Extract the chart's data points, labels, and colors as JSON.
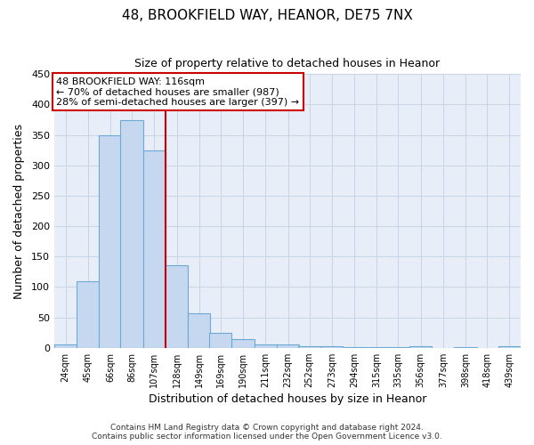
{
  "title": "48, BROOKFIELD WAY, HEANOR, DE75 7NX",
  "subtitle": "Size of property relative to detached houses in Heanor",
  "xlabel": "Distribution of detached houses by size in Heanor",
  "ylabel": "Number of detached properties",
  "bin_labels": [
    "24sqm",
    "45sqm",
    "66sqm",
    "86sqm",
    "107sqm",
    "128sqm",
    "149sqm",
    "169sqm",
    "190sqm",
    "211sqm",
    "232sqm",
    "252sqm",
    "273sqm",
    "294sqm",
    "315sqm",
    "335sqm",
    "356sqm",
    "377sqm",
    "398sqm",
    "418sqm",
    "439sqm"
  ],
  "bar_values": [
    5,
    110,
    350,
    375,
    325,
    135,
    57,
    25,
    14,
    5,
    5,
    2,
    2,
    1,
    1,
    1,
    2,
    0,
    1,
    0,
    2
  ],
  "bar_color": "#c5d8ef",
  "bar_edge_color": "#6aaad4",
  "grid_color": "#c8d4e8",
  "vline_color": "#cc0000",
  "annotation_title": "48 BROOKFIELD WAY: 116sqm",
  "annotation_line1": "← 70% of detached houses are smaller (987)",
  "annotation_line2": "28% of semi-detached houses are larger (397) →",
  "annotation_box_color": "#ffffff",
  "annotation_box_edge_color": "#cc0000",
  "ylim": [
    0,
    450
  ],
  "yticks": [
    0,
    50,
    100,
    150,
    200,
    250,
    300,
    350,
    400,
    450
  ],
  "footer1": "Contains HM Land Registry data © Crown copyright and database right 2024.",
  "footer2": "Contains public sector information licensed under the Open Government Licence v3.0.",
  "bin_edges": [
    13.5,
    34.5,
    55.5,
    75.5,
    96.5,
    117.5,
    138.5,
    159.5,
    179.5,
    200.5,
    221.5,
    241.5,
    262.5,
    283.5,
    304.5,
    324.5,
    345.5,
    366.5,
    387.5,
    408.5,
    428.5,
    449.5
  ],
  "bin_centers": [
    24,
    45,
    66,
    86,
    107,
    128,
    149,
    169,
    190,
    211,
    232,
    252,
    273,
    294,
    315,
    335,
    356,
    377,
    398,
    418,
    439
  ],
  "vline_x": 117.5,
  "bg_color": "#ffffff",
  "plot_bg_color": "#e8eef8"
}
